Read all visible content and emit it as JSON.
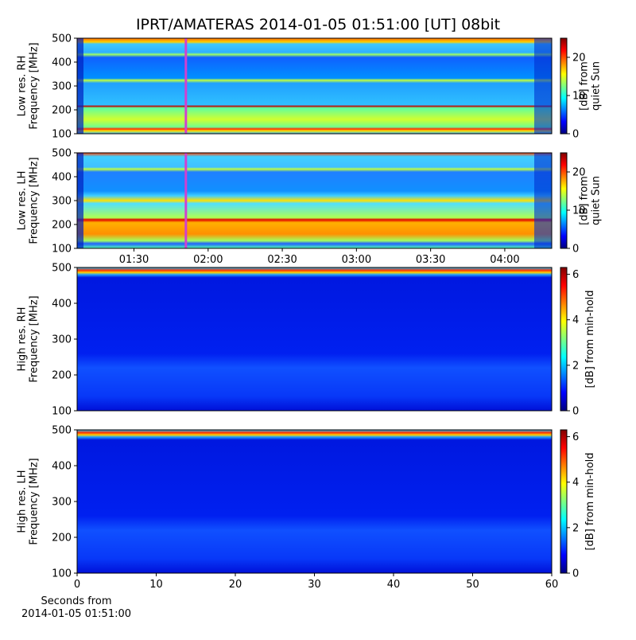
{
  "chart_data": [
    {
      "type": "heatmap",
      "title": "IPRT/AMATERAS 2014-01-05 01:51:00 [UT]   08bit",
      "ylabel": [
        "Low res. RH",
        "Frequency [MHz]"
      ],
      "ylim": [
        100,
        500
      ],
      "yticks": [
        100,
        200,
        300,
        400,
        500
      ],
      "xlim": [
        "01:07",
        "04:19"
      ],
      "marker_time": "01:51",
      "marker_color": "#d040d0",
      "colorbar_label": [
        "[dB] from",
        "quiet Sun"
      ],
      "clim": [
        0,
        25
      ],
      "cticks": [
        0,
        10,
        20
      ]
    },
    {
      "type": "heatmap",
      "ylabel": [
        "Low res. LH",
        "Frequency [MHz]"
      ],
      "ylim": [
        100,
        500
      ],
      "yticks": [
        100,
        200,
        300,
        400,
        500
      ],
      "xlim": [
        "01:07",
        "04:19"
      ],
      "xticks": [
        "01:30",
        "02:00",
        "02:30",
        "03:00",
        "03:30",
        "04:00"
      ],
      "marker_time": "01:51",
      "marker_color": "#d040d0",
      "colorbar_label": [
        "[dB] from",
        "quiet Sun"
      ],
      "clim": [
        0,
        25
      ],
      "cticks": [
        0,
        10,
        20
      ]
    },
    {
      "type": "heatmap",
      "ylabel": [
        "High res. RH",
        "Frequency [MHz]"
      ],
      "ylim": [
        100,
        500
      ],
      "yticks": [
        100,
        200,
        300,
        400,
        500
      ],
      "xlim": [
        0,
        60
      ],
      "colorbar_label": [
        "[dB] from min-hold"
      ],
      "clim": [
        0,
        6.3
      ],
      "cticks": [
        0,
        2,
        4,
        6
      ]
    },
    {
      "type": "heatmap",
      "ylabel": [
        "High res. LH",
        "Frequency [MHz]"
      ],
      "ylim": [
        100,
        500
      ],
      "yticks": [
        100,
        200,
        300,
        400,
        500
      ],
      "xlim": [
        0,
        60
      ],
      "xticks": [
        0,
        10,
        20,
        30,
        40,
        50,
        60
      ],
      "xlabel": [
        "Seconds from",
        "2014-01-05 01:51:00"
      ],
      "colorbar_label": [
        "[dB] from min-hold"
      ],
      "clim": [
        0,
        6.3
      ],
      "cticks": [
        0,
        2,
        4,
        6
      ]
    }
  ]
}
